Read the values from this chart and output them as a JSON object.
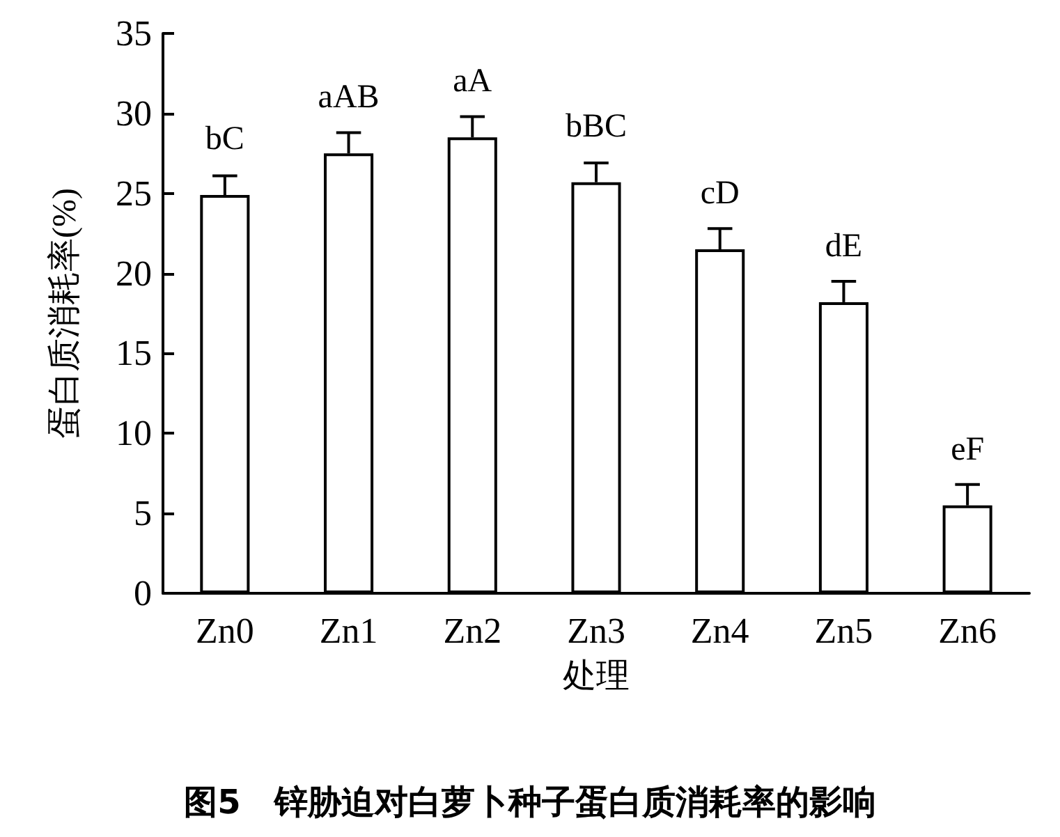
{
  "chart_data": {
    "type": "bar",
    "title": "图5　锌胁迫对白萝卜种子蛋白质消耗率的影响",
    "xlabel": "处理",
    "ylabel": "蛋白质消耗率(%)",
    "categories": [
      "Zn0",
      "Zn1",
      "Zn2",
      "Zn3",
      "Zn4",
      "Zn5",
      "Zn6"
    ],
    "values": [
      24.9,
      27.5,
      28.5,
      25.7,
      21.5,
      18.2,
      5.5
    ],
    "errors": [
      [
        24.9,
        26.1
      ],
      [
        27.5,
        28.8
      ],
      [
        28.5,
        29.8
      ],
      [
        25.7,
        26.9
      ],
      [
        21.5,
        22.8
      ],
      [
        18.2,
        19.5
      ],
      [
        5.5,
        6.8
      ]
    ],
    "value_labels": [
      "bC",
      "aAB",
      "aA",
      "bBC",
      "cD",
      "dE",
      "eF"
    ],
    "color": "#ffffff",
    "ylim": [
      0,
      35
    ],
    "yticks": [
      0,
      5,
      10,
      15,
      20,
      25,
      30,
      35
    ],
    "grid": false
  }
}
